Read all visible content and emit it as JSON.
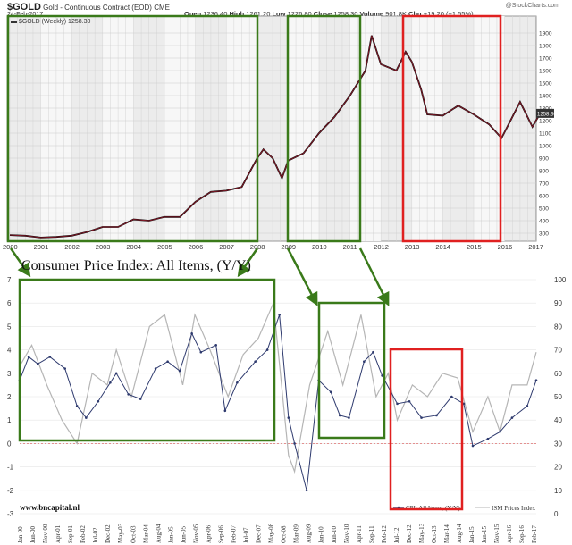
{
  "header": {
    "symbol": "$GOLD",
    "name": "Gold - Continuous Contract (EOD)",
    "exchange": "CME",
    "date": "24-Feb-2017",
    "source": "@StockCharts.com",
    "open_label": "Open",
    "open": "1236.40",
    "high_label": "High",
    "high": "1261.20",
    "low_label": "Low",
    "low": "1226.80",
    "close_label": "Close",
    "close": "1258.30",
    "volume_label": "Volume",
    "volume": "901.8K",
    "chg_label": "Chg",
    "chg": "+19.20 (+1.55%)",
    "legend": "$GOLD (Weekly) 1258.30",
    "last_value": "1258.30"
  },
  "cpi_title": "Consumer Price Index: All Items, (Y/Y)",
  "watermark": "www.bncapital.nl",
  "colors": {
    "gold": "#8b1a2a",
    "cpi": "#2e3a6e",
    "ism": "#b5b5b5",
    "green": "#3a7a1a",
    "red": "#e02020"
  },
  "chart_data": [
    {
      "type": "line",
      "title": "$GOLD (Weekly)",
      "ylim": [
        250,
        1950
      ],
      "yticks": [
        300,
        400,
        500,
        600,
        700,
        800,
        900,
        1000,
        1100,
        1200,
        1300,
        1400,
        1500,
        1600,
        1700,
        1800,
        1900
      ],
      "xticks": [
        "2000",
        "2001",
        "2002",
        "2003",
        "2004",
        "2005",
        "2006",
        "2007",
        "2008",
        "2009",
        "2010",
        "2011",
        "2012",
        "2013",
        "2014",
        "2015",
        "2016",
        "2017"
      ],
      "x": [
        2000,
        2000.5,
        2001,
        2001.5,
        2002,
        2002.5,
        2003,
        2003.5,
        2004,
        2004.5,
        2005,
        2005.5,
        2006,
        2006.5,
        2007,
        2007.5,
        2008,
        2008.2,
        2008.5,
        2008.8,
        2009,
        2009.5,
        2010,
        2010.5,
        2011,
        2011.5,
        2011.7,
        2012,
        2012.5,
        2012.8,
        2013,
        2013.3,
        2013.5,
        2014,
        2014.5,
        2015,
        2015.5,
        2015.9,
        2016.5,
        2016.9,
        2017.15
      ],
      "values": [
        285,
        280,
        265,
        270,
        280,
        310,
        350,
        350,
        410,
        400,
        430,
        430,
        550,
        630,
        640,
        670,
        900,
        970,
        900,
        740,
        880,
        940,
        1100,
        1230,
        1400,
        1600,
        1880,
        1650,
        1600,
        1750,
        1670,
        1450,
        1250,
        1240,
        1320,
        1250,
        1170,
        1060,
        1350,
        1150,
        1258
      ]
    },
    {
      "type": "line",
      "title": "Consumer Price Index: All Items, (Y/Y)",
      "ylim_left": [
        -3,
        7
      ],
      "ylim_right": [
        0,
        100
      ],
      "yticks_left": [
        "7",
        "6",
        "5",
        "4",
        "3",
        "2",
        "1",
        "0",
        "-1",
        "-2",
        "-3"
      ],
      "yticks_right": [
        "100",
        "90",
        "80",
        "70",
        "60",
        "50",
        "40",
        "30",
        "20",
        "10",
        "0"
      ],
      "xticks": [
        "Jan-00",
        "Jun-00",
        "Nov-00",
        "Apr-01",
        "Sep-01",
        "Feb-02",
        "Jul-02",
        "Dec-02",
        "May-03",
        "Oct-03",
        "Mar-04",
        "Aug-04",
        "Jan-05",
        "Jun-05",
        "Nov-05",
        "Apr-06",
        "Sep-06",
        "Feb-07",
        "Jul-07",
        "Dec-07",
        "May-08",
        "Oct-08",
        "Mar-09",
        "Aug-09",
        "Jan-10",
        "Jun-10",
        "Nov-10",
        "Apr-11",
        "Sep-11",
        "Feb-12",
        "Jul-12",
        "Dec-12",
        "May-13",
        "Oct-13",
        "Mar-14",
        "Aug-14",
        "Jan-15",
        "Jun-15",
        "Nov-15",
        "Apr-16",
        "Sep-16",
        "Feb-17"
      ],
      "legend": [
        "CPI: All Items, (Y/Y)",
        "ISM Prices Index"
      ],
      "legend_position": "bottom-right",
      "series": [
        {
          "name": "CPI: All Items, (Y/Y)",
          "axis": "left",
          "x": [
            2000,
            2000.3,
            2000.6,
            2001,
            2001.5,
            2001.9,
            2002.2,
            2002.6,
            2003,
            2003.2,
            2003.6,
            2004,
            2004.5,
            2004.9,
            2005.3,
            2005.7,
            2006,
            2006.5,
            2006.8,
            2007.2,
            2007.8,
            2008.2,
            2008.6,
            2008.9,
            2009.1,
            2009.5,
            2009.9,
            2010.3,
            2010.6,
            2010.9,
            2011.4,
            2011.7,
            2012,
            2012.5,
            2012.9,
            2013.3,
            2013.8,
            2014.3,
            2014.7,
            2015,
            2015.5,
            2015.9,
            2016.3,
            2016.8,
            2017.1
          ],
          "values": [
            2.7,
            3.7,
            3.4,
            3.7,
            3.2,
            1.6,
            1.1,
            1.8,
            2.6,
            3.0,
            2.1,
            1.9,
            3.2,
            3.5,
            3.1,
            4.7,
            3.9,
            4.2,
            1.4,
            2.6,
            3.5,
            4.0,
            5.5,
            1.1,
            0.0,
            -2.0,
            2.7,
            2.2,
            1.2,
            1.1,
            3.5,
            3.9,
            2.9,
            1.7,
            1.8,
            1.1,
            1.2,
            2.0,
            1.7,
            -0.1,
            0.2,
            0.5,
            1.1,
            1.6,
            2.7
          ]
        },
        {
          "name": "ISM Prices Index",
          "axis": "right",
          "x": [
            2000,
            2000.4,
            2000.9,
            2001.4,
            2001.9,
            2002.4,
            2002.9,
            2003.2,
            2003.7,
            2004.3,
            2004.8,
            2005.4,
            2005.8,
            2006.3,
            2006.9,
            2007.4,
            2007.9,
            2008.4,
            2008.9,
            2009.1,
            2009.6,
            2010.2,
            2010.7,
            2011.3,
            2011.8,
            2012.2,
            2012.5,
            2013,
            2013.5,
            2014,
            2014.5,
            2015,
            2015.5,
            2015.9,
            2016.3,
            2016.8,
            2017.1
          ],
          "values": [
            63,
            72,
            55,
            40,
            30,
            60,
            55,
            70,
            50,
            80,
            85,
            55,
            85,
            70,
            50,
            68,
            75,
            90,
            25,
            18,
            55,
            78,
            55,
            85,
            50,
            60,
            40,
            55,
            50,
            60,
            58,
            35,
            50,
            35,
            55,
            55,
            69
          ]
        }
      ]
    }
  ]
}
